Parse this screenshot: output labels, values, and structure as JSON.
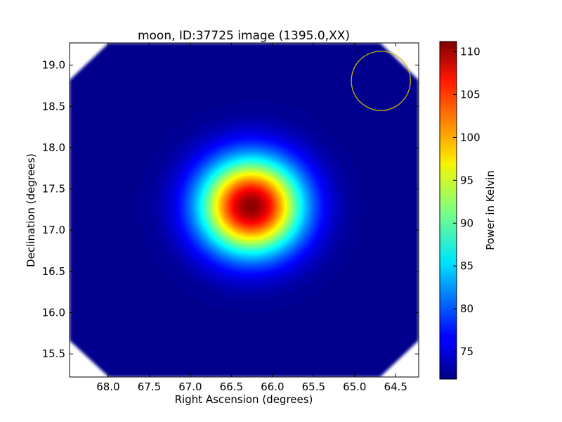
{
  "chart_data": {
    "type": "heatmap",
    "title": "moon, ID:37725 image (1395.0,XX)",
    "xlabel": "Right Ascension (degrees)",
    "ylabel": "Declination (degrees)",
    "xlim": [
      68.47,
      64.22
    ],
    "ylim": [
      15.22,
      19.27
    ],
    "x_inverted": true,
    "x_ticks": [
      {
        "value": 68.0,
        "label": "68.0"
      },
      {
        "value": 67.5,
        "label": "67.5"
      },
      {
        "value": 67.0,
        "label": "67.0"
      },
      {
        "value": 66.5,
        "label": "66.5"
      },
      {
        "value": 66.0,
        "label": "66.0"
      },
      {
        "value": 65.5,
        "label": "65.5"
      },
      {
        "value": 65.0,
        "label": "65.0"
      },
      {
        "value": 64.5,
        "label": "64.5"
      }
    ],
    "y_ticks": [
      {
        "value": 15.5,
        "label": "15.5"
      },
      {
        "value": 16.0,
        "label": "16.0"
      },
      {
        "value": 16.5,
        "label": "16.5"
      },
      {
        "value": 17.0,
        "label": "17.0"
      },
      {
        "value": 17.5,
        "label": "17.5"
      },
      {
        "value": 18.0,
        "label": "18.0"
      },
      {
        "value": 18.5,
        "label": "18.5"
      },
      {
        "value": 19.0,
        "label": "19.0"
      }
    ],
    "colormap": "jet",
    "colorbar": {
      "label": "Power in Kelvin",
      "range": [
        71.8,
        111.2
      ],
      "ticks": [
        {
          "value": 75,
          "label": "75"
        },
        {
          "value": 80,
          "label": "80"
        },
        {
          "value": 85,
          "label": "85"
        },
        {
          "value": 90,
          "label": "90"
        },
        {
          "value": 95,
          "label": "95"
        },
        {
          "value": 100,
          "label": "100"
        },
        {
          "value": 105,
          "label": "105"
        },
        {
          "value": 110,
          "label": "110"
        }
      ]
    },
    "source": {
      "ra": 66.26,
      "dec": 17.29,
      "peak": 111.0,
      "sigma_deg": 0.42,
      "background": 72.3
    },
    "beam_circle": {
      "ra": 64.68,
      "dec": 18.81,
      "radius_deg": 0.36,
      "color": "#c8b400"
    },
    "grid": false
  }
}
